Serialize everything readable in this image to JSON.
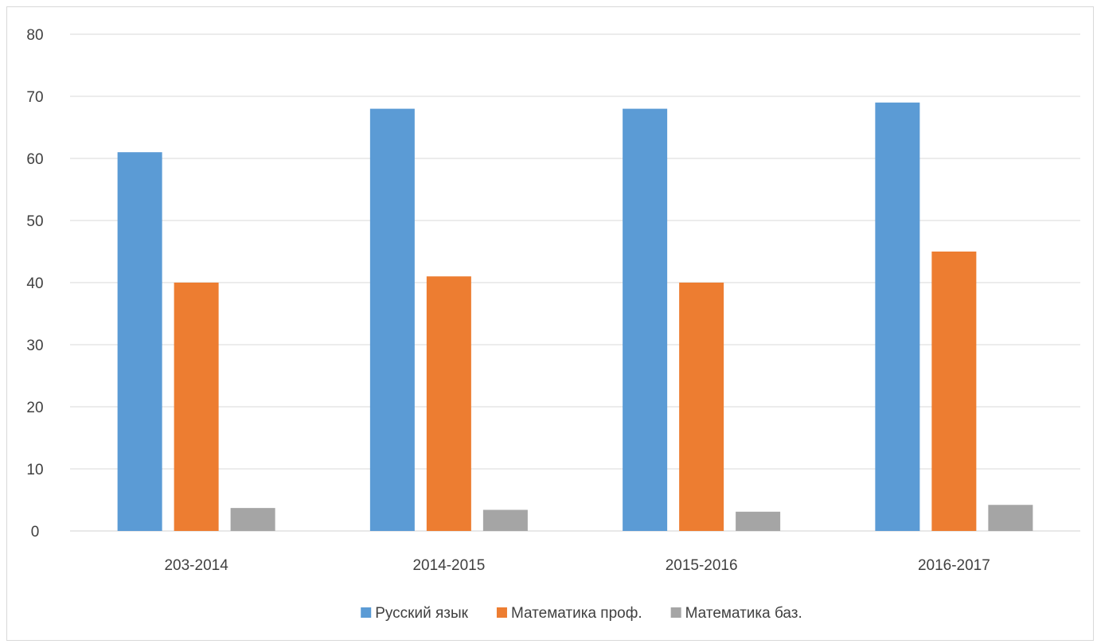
{
  "chart_data": {
    "type": "bar",
    "title": "",
    "xlabel": "",
    "ylabel": "",
    "categories": [
      "203-2014",
      "2014-2015",
      "2015-2016",
      "2016-2017"
    ],
    "series": [
      {
        "name": "Русский язык",
        "color": "#5b9bd5",
        "values": [
          61,
          68,
          68,
          69
        ]
      },
      {
        "name": "Математика проф.",
        "color": "#ed7d31",
        "values": [
          40,
          41,
          40,
          45
        ]
      },
      {
        "name": "Математика баз.",
        "color": "#a5a5a5",
        "values": [
          3.7,
          3.4,
          3.1,
          4.2
        ]
      }
    ],
    "ylim": [
      0,
      80
    ],
    "yticks": [
      "0",
      "10",
      "20",
      "30",
      "40",
      "50",
      "60",
      "70",
      "80"
    ],
    "grid": true,
    "legend": "bottom-center"
  }
}
